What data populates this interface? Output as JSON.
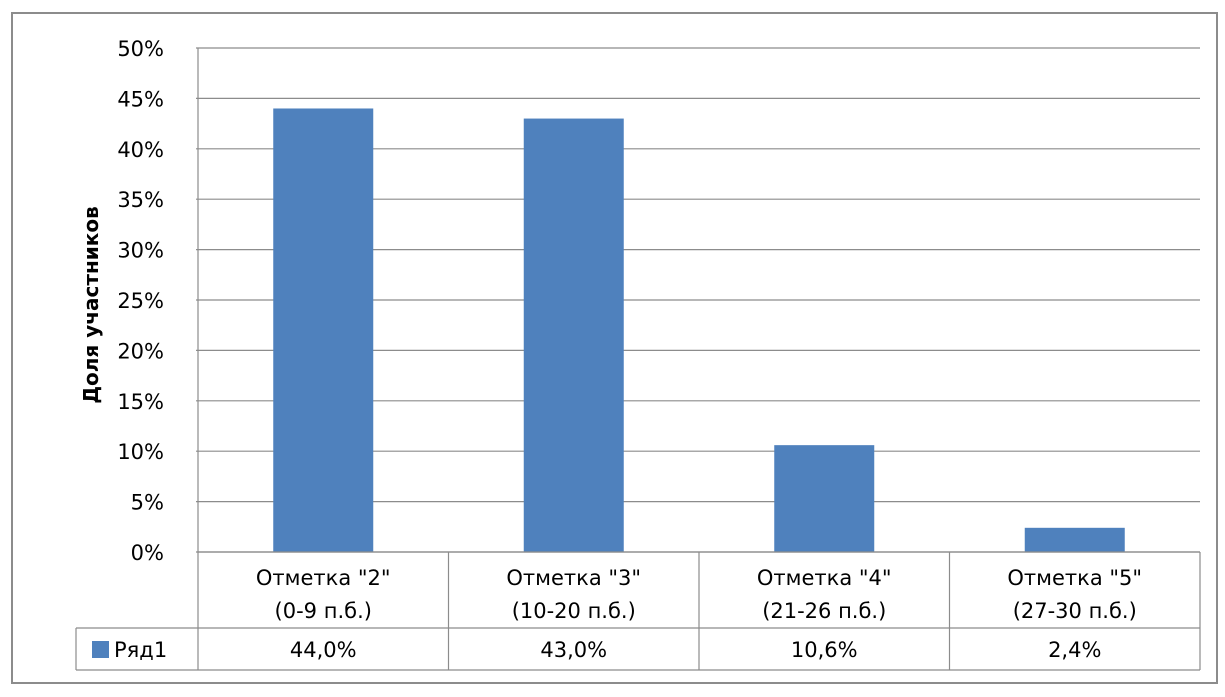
{
  "chart_data": {
    "type": "bar",
    "ylabel": "Доля участников",
    "xlabel": "",
    "ylim": [
      0,
      50
    ],
    "ytick_step": 5,
    "ytick_labels": [
      "0%",
      "5%",
      "10%",
      "15%",
      "20%",
      "25%",
      "30%",
      "35%",
      "40%",
      "45%",
      "50%"
    ],
    "categories": [
      [
        "Отметка \"2\"",
        "(0-9 п.б.)"
      ],
      [
        "Отметка \"3\"",
        "(10-20 п.б.)"
      ],
      [
        "Отметка \"4\"",
        "(21-26 п.б.)"
      ],
      [
        "Отметка \"5\"",
        "(27-30 п.б.)"
      ]
    ],
    "series": [
      {
        "name": "Ряд1",
        "values": [
          44.0,
          43.0,
          10.6,
          2.4
        ],
        "labels": [
          "44,0%",
          "43,0%",
          "10,6%",
          "2,4%"
        ],
        "color": "#4f81bd"
      }
    ],
    "grid": true,
    "legend": "data-table",
    "data_table": true
  }
}
